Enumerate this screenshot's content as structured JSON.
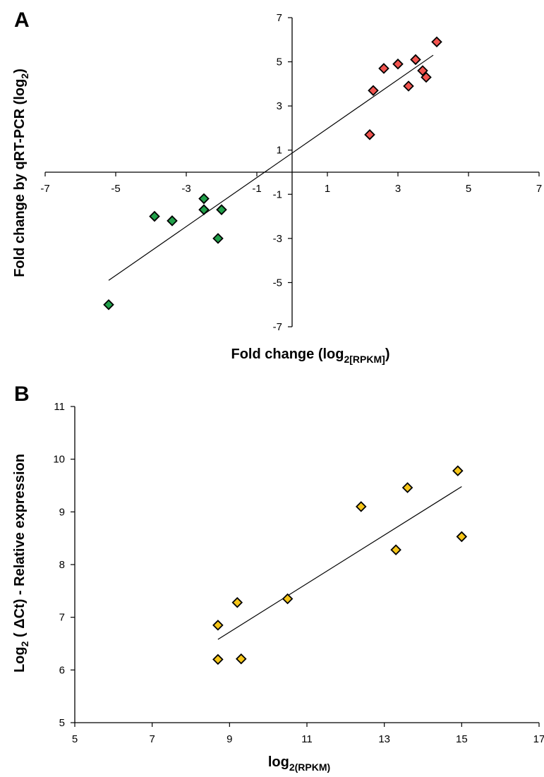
{
  "chart_data": [
    {
      "type": "scatter",
      "panel_label": "A",
      "xlabel": {
        "main": "Fold change (log",
        "sub": "2[RPKM]",
        "end": ")"
      },
      "ylabel": {
        "main": "Fold change by qRT-PCR (log",
        "sub": "2",
        "end": ")"
      },
      "xlim": [
        -7,
        7
      ],
      "ylim": [
        -7,
        7
      ],
      "x_ticks": [
        -7,
        -5,
        -3,
        -1,
        1,
        3,
        5,
        7
      ],
      "y_ticks": [
        -7,
        -5,
        -3,
        -1,
        1,
        3,
        5,
        7
      ],
      "axes_cross_at_origin": true,
      "grid": false,
      "legend": "none",
      "marker": "diamond",
      "series": [
        {
          "color": "#21a04a",
          "points": [
            {
              "x": -5.2,
              "y": -6.0
            },
            {
              "x": -3.9,
              "y": -2.0
            },
            {
              "x": -3.4,
              "y": -2.2
            },
            {
              "x": -2.5,
              "y": -1.2
            },
            {
              "x": -2.5,
              "y": -1.7
            },
            {
              "x": -2.0,
              "y": -1.7
            },
            {
              "x": -2.1,
              "y": -3.0
            }
          ]
        },
        {
          "color": "#f2544f",
          "points": [
            {
              "x": 2.2,
              "y": 1.7
            },
            {
              "x": 2.3,
              "y": 3.7
            },
            {
              "x": 2.6,
              "y": 4.7
            },
            {
              "x": 3.0,
              "y": 4.9
            },
            {
              "x": 3.3,
              "y": 3.9
            },
            {
              "x": 3.5,
              "y": 5.1
            },
            {
              "x": 3.7,
              "y": 4.6
            },
            {
              "x": 3.8,
              "y": 4.3
            },
            {
              "x": 4.1,
              "y": 5.9
            }
          ]
        }
      ],
      "trendline": {
        "x": [
          -5.2,
          4.0
        ],
        "y": [
          -4.9,
          5.3
        ]
      }
    },
    {
      "type": "scatter",
      "panel_label": "B",
      "xlabel": {
        "main": "log",
        "sub": "2(RPKM)",
        "end": ""
      },
      "ylabel": {
        "main": "Log",
        "sub": "2",
        "end": " ( ΔCt) - Relative expression"
      },
      "xlim": [
        5,
        17
      ],
      "ylim": [
        5,
        11
      ],
      "x_ticks": [
        5,
        7,
        9,
        11,
        13,
        15,
        17
      ],
      "y_ticks": [
        5,
        6,
        7,
        8,
        9,
        10,
        11
      ],
      "axes_cross_at_origin": false,
      "grid": false,
      "legend": "none",
      "marker": "diamond",
      "series": [
        {
          "color": "#f5c518",
          "points": [
            {
              "x": 8.7,
              "y": 6.85
            },
            {
              "x": 8.7,
              "y": 6.2
            },
            {
              "x": 9.2,
              "y": 7.28
            },
            {
              "x": 9.3,
              "y": 6.21
            },
            {
              "x": 10.5,
              "y": 7.35
            },
            {
              "x": 12.4,
              "y": 9.1
            },
            {
              "x": 13.3,
              "y": 8.28
            },
            {
              "x": 13.6,
              "y": 9.46
            },
            {
              "x": 14.9,
              "y": 9.78
            },
            {
              "x": 15.0,
              "y": 8.53
            }
          ]
        }
      ],
      "trendline": {
        "x": [
          8.7,
          15.0
        ],
        "y": [
          6.58,
          9.48
        ]
      }
    }
  ]
}
